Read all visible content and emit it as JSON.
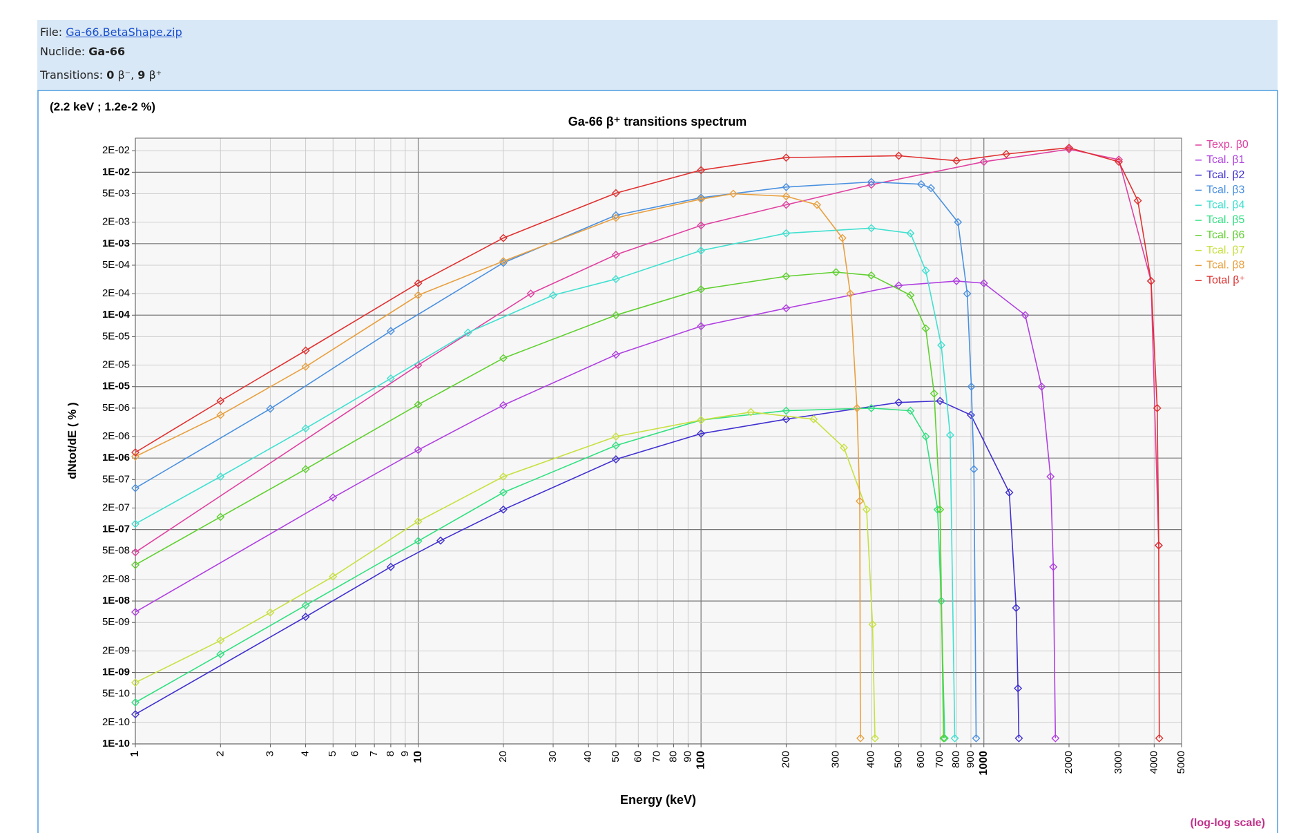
{
  "header": {
    "file_label": "File:",
    "file_link": "Ga-66.BetaShape.zip",
    "nuclide_label": "Nuclide:",
    "nuclide": "Ga-66",
    "transitions_label": "Transitions:",
    "beta_minus_count": 0,
    "beta_minus_symbol": "β⁻,",
    "beta_plus_count": 9,
    "beta_plus_symbol": "β⁺"
  },
  "chart_data": {
    "type": "line",
    "title": "Ga-66 β⁺ transitions spectrum",
    "annotation": "(2.2 keV ; 1.2e-2 %)",
    "x_label": "Energy (keV)",
    "y_label": "dNtot/dE ( % )",
    "scale_note": "(log-log scale)",
    "xlog": true,
    "ylog": true,
    "grid": true,
    "legend": "right",
    "marker": "diamond",
    "xlim": [
      1,
      5000
    ],
    "ylim": [
      1e-10,
      0.03
    ],
    "xticks": [
      1,
      2,
      3,
      4,
      5,
      6,
      7,
      8,
      9,
      10,
      20,
      30,
      40,
      50,
      60,
      70,
      80,
      90,
      100,
      200,
      300,
      400,
      500,
      600,
      700,
      800,
      900,
      1000,
      2000,
      3000,
      4000,
      5000
    ],
    "yticks": [
      {
        "value": 1e-10,
        "label": "1E-10"
      },
      {
        "value": 2e-10,
        "label": "2E-10"
      },
      {
        "value": 5e-10,
        "label": "5E-10"
      },
      {
        "value": 1e-09,
        "label": "1E-09"
      },
      {
        "value": 2e-09,
        "label": "2E-09"
      },
      {
        "value": 5e-09,
        "label": "5E-09"
      },
      {
        "value": 1e-08,
        "label": "1E-08"
      },
      {
        "value": 2e-08,
        "label": "2E-08"
      },
      {
        "value": 5e-08,
        "label": "5E-08"
      },
      {
        "value": 1e-07,
        "label": "1E-07"
      },
      {
        "value": 2e-07,
        "label": "2E-07"
      },
      {
        "value": 5e-07,
        "label": "5E-07"
      },
      {
        "value": 1e-06,
        "label": "1E-06"
      },
      {
        "value": 2e-06,
        "label": "2E-06"
      },
      {
        "value": 5e-06,
        "label": "5E-06"
      },
      {
        "value": 1e-05,
        "label": "1E-05"
      },
      {
        "value": 2e-05,
        "label": "2E-05"
      },
      {
        "value": 5e-05,
        "label": "5E-05"
      },
      {
        "value": 0.0001,
        "label": "1E-04"
      },
      {
        "value": 0.0002,
        "label": "2E-04"
      },
      {
        "value": 0.0005,
        "label": "5E-04"
      },
      {
        "value": 0.001,
        "label": "1E-03"
      },
      {
        "value": 0.002,
        "label": "2E-03"
      },
      {
        "value": 0.005,
        "label": "5E-03"
      },
      {
        "value": 0.01,
        "label": "1E-02"
      },
      {
        "value": 0.02,
        "label": "2E-02"
      }
    ],
    "series": [
      {
        "name": "Texp. β0",
        "color": "#e040a0",
        "x": [
          1,
          10,
          25,
          50,
          100,
          200,
          400,
          1000,
          2000,
          3000,
          3900,
          4150
        ],
        "values": [
          4.8e-08,
          2e-05,
          0.0002,
          0.0007,
          0.0018,
          0.0035,
          0.0067,
          0.014,
          0.021,
          0.015,
          0.0003,
          6e-08
        ]
      },
      {
        "name": "Tcal. β1",
        "color": "#b040e0",
        "x": [
          1,
          5,
          10,
          20,
          50,
          100,
          200,
          500,
          800,
          1000,
          1400,
          1600,
          1720,
          1760,
          1790
        ],
        "values": [
          7e-09,
          2.8e-07,
          1.3e-06,
          5.5e-06,
          2.8e-05,
          7e-05,
          0.000125,
          0.00026,
          0.0003,
          0.00028,
          0.0001,
          1e-05,
          5.5e-07,
          3e-08,
          1.2e-10
        ]
      },
      {
        "name": "Tcal. β2",
        "color": "#4030d0",
        "x": [
          1,
          4,
          8,
          12,
          20,
          50,
          100,
          200,
          500,
          700,
          900,
          1230,
          1300,
          1320,
          1330
        ],
        "values": [
          2.6e-10,
          6e-09,
          3e-08,
          7e-08,
          1.9e-07,
          9.6e-07,
          2.2e-06,
          3.5e-06,
          6e-06,
          6.3e-06,
          4e-06,
          3.3e-07,
          8e-09,
          6e-10,
          1.2e-10
        ]
      },
      {
        "name": "Tcal. β3",
        "color": "#4a90e0",
        "x": [
          1,
          3,
          8,
          20,
          50,
          100,
          200,
          400,
          600,
          650,
          810,
          873,
          903,
          922,
          939
        ],
        "values": [
          3.8e-07,
          4.9e-06,
          6e-05,
          0.00054,
          0.0025,
          0.0044,
          0.0062,
          0.0073,
          0.0068,
          0.006,
          0.002,
          0.0002,
          1e-05,
          7e-07,
          1.2e-10
        ]
      },
      {
        "name": "Tcal. β4",
        "color": "#40e0d0",
        "x": [
          1,
          2,
          4,
          8,
          15,
          30,
          50,
          100,
          200,
          400,
          550,
          623,
          707,
          760,
          789
        ],
        "values": [
          1.2e-07,
          5.5e-07,
          2.6e-06,
          1.3e-05,
          5.7e-05,
          0.00019,
          0.00032,
          0.0008,
          0.0014,
          0.00165,
          0.0014,
          0.00042,
          3.8e-05,
          2.1e-06,
          1.2e-10
        ]
      },
      {
        "name": "Tcal. β5",
        "color": "#30e080",
        "x": [
          1,
          2,
          4,
          10,
          20,
          50,
          100,
          200,
          400,
          550,
          623,
          686,
          707,
          727
        ],
        "values": [
          3.8e-10,
          1.8e-09,
          8.7e-09,
          6.9e-08,
          3.3e-07,
          1.5e-06,
          3.4e-06,
          4.6e-06,
          5e-06,
          4.6e-06,
          2e-06,
          1.9e-07,
          1e-08,
          1.2e-10
        ]
      },
      {
        "name": "Tcal. β6",
        "color": "#60d030",
        "x": [
          1,
          2,
          4,
          10,
          20,
          50,
          100,
          200,
          300,
          400,
          550,
          623,
          667,
          700,
          720
        ],
        "values": [
          3.2e-08,
          1.5e-07,
          7e-07,
          5.6e-06,
          2.5e-05,
          0.0001,
          0.00023,
          0.00035,
          0.0004,
          0.00036,
          0.00019,
          6.5e-05,
          8e-06,
          1.9e-07,
          1.2e-10
        ]
      },
      {
        "name": "Tcal. β7",
        "color": "#c8e040",
        "x": [
          1,
          2,
          3,
          5,
          10,
          20,
          50,
          100,
          150,
          250,
          320,
          385,
          404,
          412
        ],
        "values": [
          7.2e-10,
          2.8e-09,
          6.9e-09,
          2.2e-08,
          1.3e-07,
          5.5e-07,
          2e-06,
          3.4e-06,
          4.4e-06,
          3.5e-06,
          1.4e-06,
          1.9e-07,
          4.7e-09,
          1.2e-10
        ]
      },
      {
        "name": "Tcal. β8",
        "color": "#e8a040",
        "x": [
          1,
          2,
          4,
          10,
          20,
          50,
          100,
          130,
          200,
          257,
          316,
          337,
          356,
          364,
          366
        ],
        "values": [
          1.05e-06,
          4e-06,
          1.9e-05,
          0.00019,
          0.00057,
          0.0023,
          0.0042,
          0.005,
          0.0046,
          0.0035,
          0.0012,
          0.0002,
          5e-06,
          2.5e-07,
          1.2e-10
        ]
      },
      {
        "name": "Total β⁺",
        "color": "#e03030",
        "x": [
          1,
          2,
          4,
          10,
          20,
          50,
          100,
          200,
          500,
          800,
          1200,
          2000,
          3000,
          3500,
          3900,
          4100,
          4150,
          4170
        ],
        "values": [
          1.2e-06,
          6.3e-06,
          3.2e-05,
          0.00028,
          0.0012,
          0.0051,
          0.0107,
          0.016,
          0.017,
          0.0145,
          0.018,
          0.022,
          0.014,
          0.004,
          0.0003,
          5e-06,
          6e-08,
          1.2e-10
        ]
      }
    ]
  }
}
